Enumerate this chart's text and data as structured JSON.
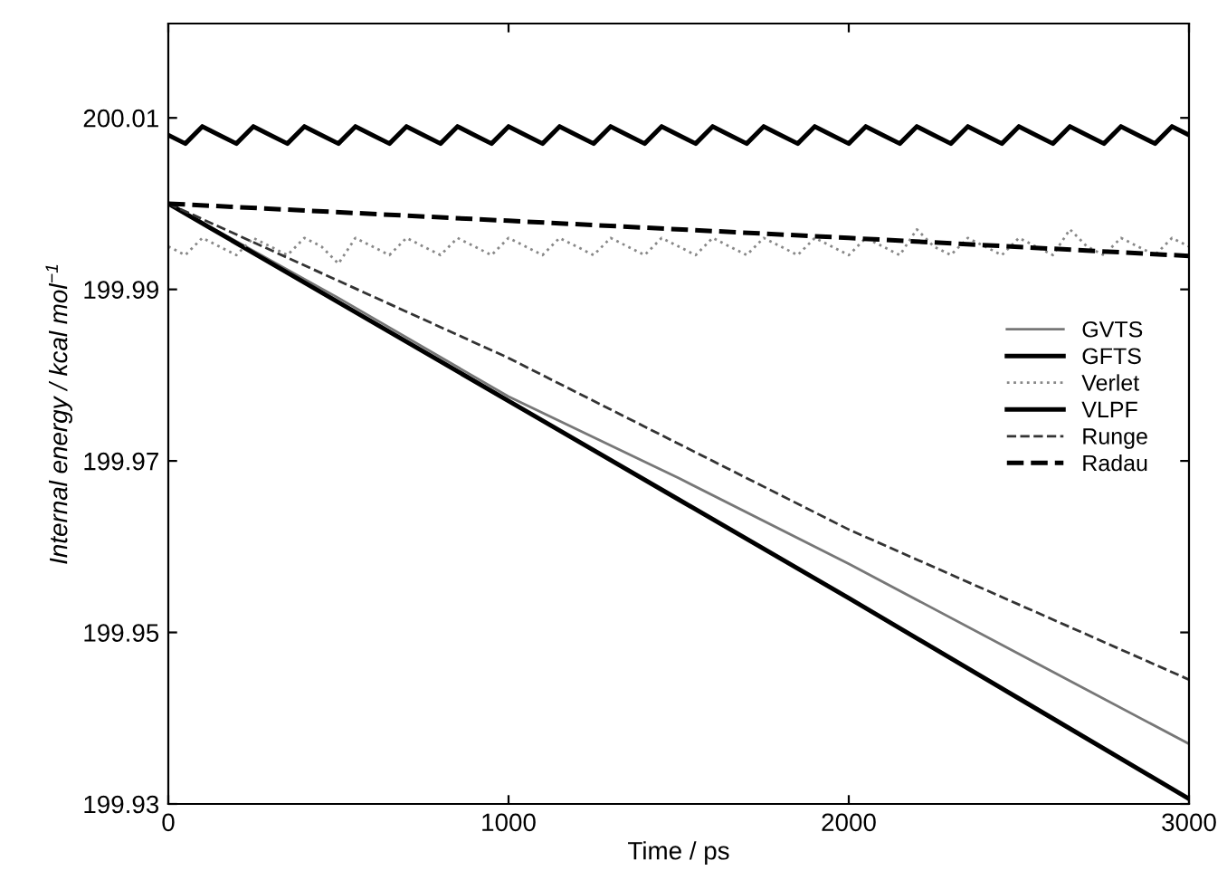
{
  "chart_data": {
    "type": "line",
    "xlabel": "Time / ps",
    "ylabel": "Internal energy / kcal mol$^{−1}$",
    "xlim": [
      0,
      3000
    ],
    "ylim": [
      199.93,
      200.021
    ],
    "xticks": [
      0,
      1000,
      2000,
      3000
    ],
    "yticks": [
      199.93,
      199.95,
      199.97,
      199.99,
      200.01
    ],
    "grid": false,
    "legend": "right",
    "marker": "none",
    "series": [
      {
        "name": "GVTS",
        "color": "#777777",
        "line_style": "solid",
        "x": [
          0,
          500,
          1000,
          1500,
          2000,
          2500,
          3000
        ],
        "values": [
          200.0,
          199.989,
          199.9775,
          199.968,
          199.958,
          199.9475,
          199.937
        ]
      },
      {
        "name": "GFTS",
        "color": "#000000",
        "line_style": "solid",
        "x": [
          0,
          500,
          1000,
          1500,
          2000,
          2500,
          3000
        ],
        "values": [
          200.0,
          199.9885,
          199.977,
          199.9655,
          199.954,
          199.9423,
          199.9306
        ]
      },
      {
        "name": "Verlet",
        "color": "#888888",
        "line_style": "dotted",
        "x": [
          0,
          50,
          100,
          150,
          200,
          250,
          300,
          350,
          400,
          450,
          500,
          550,
          600,
          650,
          700,
          750,
          800,
          850,
          900,
          950,
          1000,
          1050,
          1100,
          1150,
          1200,
          1250,
          1300,
          1350,
          1400,
          1450,
          1500,
          1550,
          1600,
          1650,
          1700,
          1750,
          1800,
          1850,
          1900,
          1950,
          2000,
          2050,
          2100,
          2150,
          2200,
          2250,
          2300,
          2350,
          2400,
          2450,
          2500,
          2550,
          2600,
          2650,
          2700,
          2750,
          2800,
          2850,
          2900,
          2950,
          3000
        ],
        "values": [
          199.995,
          199.994,
          199.996,
          199.995,
          199.994,
          199.996,
          199.995,
          199.994,
          199.996,
          199.995,
          199.993,
          199.996,
          199.995,
          199.994,
          199.996,
          199.995,
          199.994,
          199.996,
          199.995,
          199.994,
          199.996,
          199.995,
          199.994,
          199.996,
          199.995,
          199.994,
          199.996,
          199.995,
          199.994,
          199.996,
          199.995,
          199.994,
          199.996,
          199.995,
          199.994,
          199.996,
          199.995,
          199.994,
          199.996,
          199.995,
          199.994,
          199.996,
          199.995,
          199.994,
          199.997,
          199.995,
          199.994,
          199.996,
          199.995,
          199.994,
          199.996,
          199.995,
          199.994,
          199.997,
          199.995,
          199.994,
          199.996,
          199.995,
          199.994,
          199.996,
          199.995
        ]
      },
      {
        "name": "VLPF",
        "color": "#000000",
        "line_style": "solid",
        "x": [
          0,
          50,
          100,
          150,
          200,
          250,
          300,
          350,
          400,
          450,
          500,
          550,
          600,
          650,
          700,
          750,
          800,
          850,
          900,
          950,
          1000,
          1050,
          1100,
          1150,
          1200,
          1250,
          1300,
          1350,
          1400,
          1450,
          1500,
          1550,
          1600,
          1650,
          1700,
          1750,
          1800,
          1850,
          1900,
          1950,
          2000,
          2050,
          2100,
          2150,
          2200,
          2250,
          2300,
          2350,
          2400,
          2450,
          2500,
          2550,
          2600,
          2650,
          2700,
          2750,
          2800,
          2850,
          2900,
          2950,
          3000
        ],
        "values": [
          200.008,
          200.007,
          200.009,
          200.008,
          200.007,
          200.009,
          200.008,
          200.007,
          200.009,
          200.008,
          200.007,
          200.009,
          200.008,
          200.007,
          200.009,
          200.008,
          200.007,
          200.009,
          200.008,
          200.007,
          200.009,
          200.008,
          200.007,
          200.009,
          200.008,
          200.007,
          200.009,
          200.008,
          200.007,
          200.009,
          200.008,
          200.007,
          200.009,
          200.008,
          200.007,
          200.009,
          200.008,
          200.007,
          200.009,
          200.008,
          200.007,
          200.009,
          200.008,
          200.007,
          200.009,
          200.008,
          200.007,
          200.009,
          200.008,
          200.007,
          200.009,
          200.008,
          200.007,
          200.009,
          200.008,
          200.007,
          200.009,
          200.008,
          200.007,
          200.009,
          200.008
        ]
      },
      {
        "name": "Runge",
        "color": "#333333",
        "line_style": "dashed",
        "x": [
          0,
          1000,
          2000,
          3000
        ],
        "values": [
          200.0,
          199.982,
          199.962,
          199.9445
        ]
      },
      {
        "name": "Radau",
        "color": "#000000",
        "line_style": "dashed",
        "x": [
          0,
          1000,
          2000,
          3000
        ],
        "values": [
          200.0,
          199.998,
          199.996,
          199.9939
        ]
      }
    ]
  }
}
